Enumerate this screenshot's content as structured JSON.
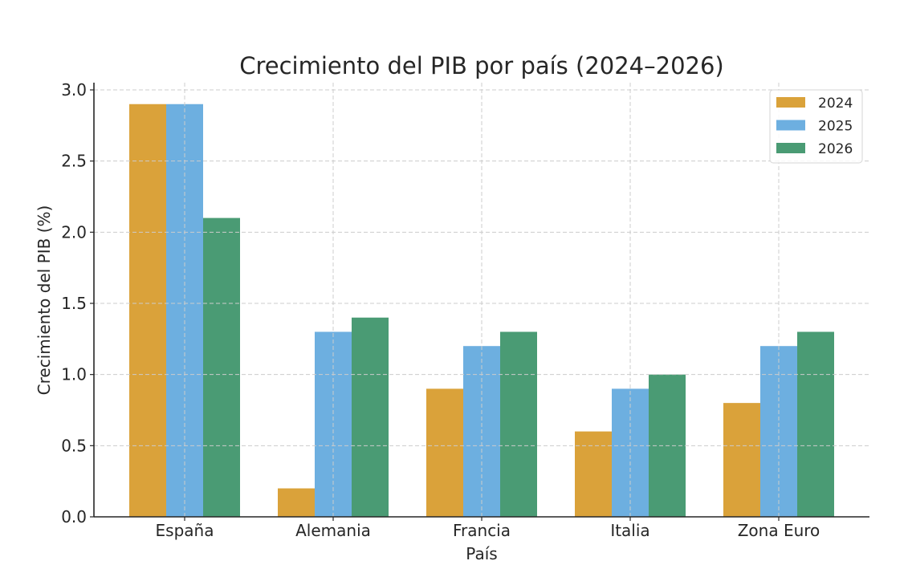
{
  "chart_data": {
    "type": "bar",
    "title": "Crecimiento del PIB por país (2024–2026)",
    "xlabel": "País",
    "ylabel": "Crecimiento del PIB (%)",
    "categories": [
      "España",
      "Alemania",
      "Francia",
      "Italia",
      "Zona Euro"
    ],
    "series": [
      {
        "name": "2024",
        "color": "#DAA23A",
        "values": [
          2.9,
          0.2,
          0.9,
          0.6,
          0.8
        ]
      },
      {
        "name": "2025",
        "color": "#6DAFE0",
        "values": [
          2.9,
          1.3,
          1.2,
          0.9,
          1.2
        ]
      },
      {
        "name": "2026",
        "color": "#4A9B74",
        "values": [
          2.1,
          1.4,
          1.3,
          1.0,
          1.3
        ]
      }
    ],
    "ylim": [
      0,
      3.05
    ],
    "yticks": [
      0.0,
      0.5,
      1.0,
      1.5,
      2.0,
      2.5,
      3.0
    ],
    "ytick_labels": [
      "0.0",
      "0.5",
      "1.0",
      "1.5",
      "2.0",
      "2.5",
      "3.0"
    ],
    "grid": true,
    "legend_position": "upper right"
  }
}
